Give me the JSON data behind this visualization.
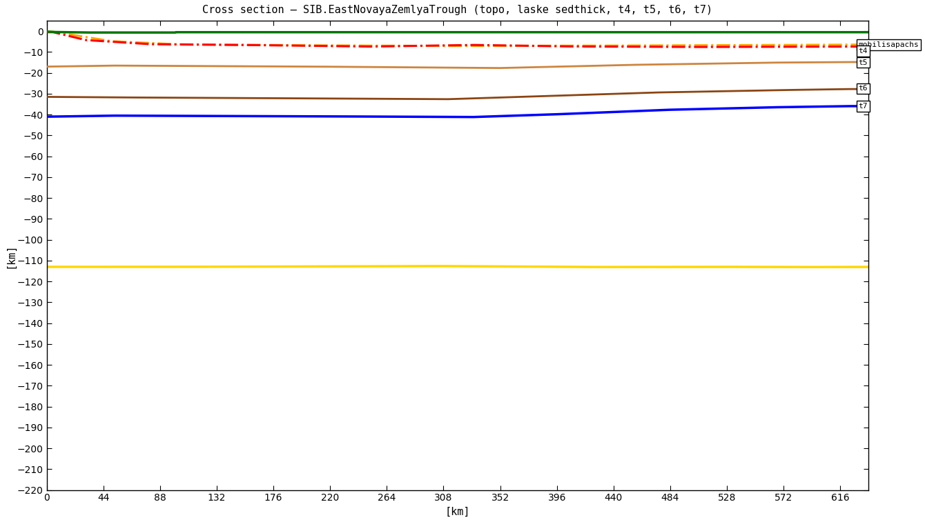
{
  "title": "Cross section – SIB.EastNovayaZemlyaTrough (topo, laske sedthick, t4, t5, t6, t7)",
  "xlabel": "[km]",
  "ylabel": "[km]",
  "xlim": [
    0,
    638
  ],
  "ylim": [
    -220,
    5
  ],
  "xticks": [
    0,
    44,
    88,
    132,
    176,
    220,
    264,
    308,
    352,
    396,
    440,
    484,
    528,
    572,
    616
  ],
  "yticks": [
    0,
    -10,
    -20,
    -30,
    -40,
    -50,
    -60,
    -70,
    -80,
    -90,
    -100,
    -110,
    -120,
    -130,
    -140,
    -150,
    -160,
    -170,
    -180,
    -190,
    -200,
    -210,
    -220
  ],
  "bg_color": "#ffffff",
  "topo_color": "#007700",
  "laske_color": "#FFA500",
  "red_color": "#FF0000",
  "t5_color": "#A0522D",
  "t6_color": "#7B3F00",
  "t7_color": "#0000FF",
  "yellow_color": "#FFD700",
  "title_fontsize": 11,
  "axis_fontsize": 11,
  "tick_fontsize": 10
}
